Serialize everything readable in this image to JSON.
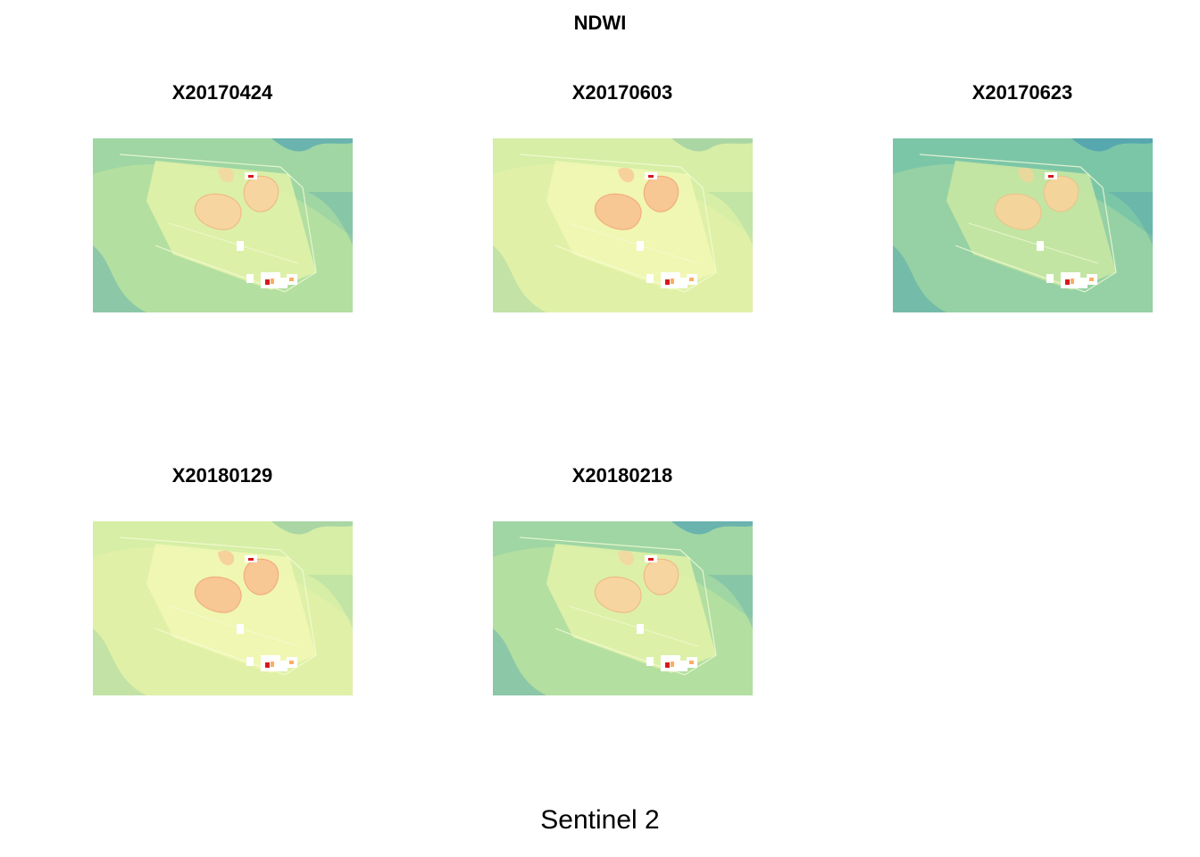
{
  "figure": {
    "title": "NDWI",
    "xlabel": "Sentinel 2"
  },
  "colors": {
    "palette": [
      "#2b83ba",
      "#64b5a8",
      "#abdda4",
      "#e6f5a8",
      "#fdd49e",
      "#fdae61",
      "#d7191c"
    ],
    "background": "#ffffff"
  },
  "panels": [
    {
      "title": "X20170424",
      "tone": "moderate"
    },
    {
      "title": "X20170603",
      "tone": "dry"
    },
    {
      "title": "X20170623",
      "tone": "wet"
    },
    {
      "title": "X20180129",
      "tone": "dry"
    },
    {
      "title": "X20180218",
      "tone": "moderate"
    }
  ]
}
